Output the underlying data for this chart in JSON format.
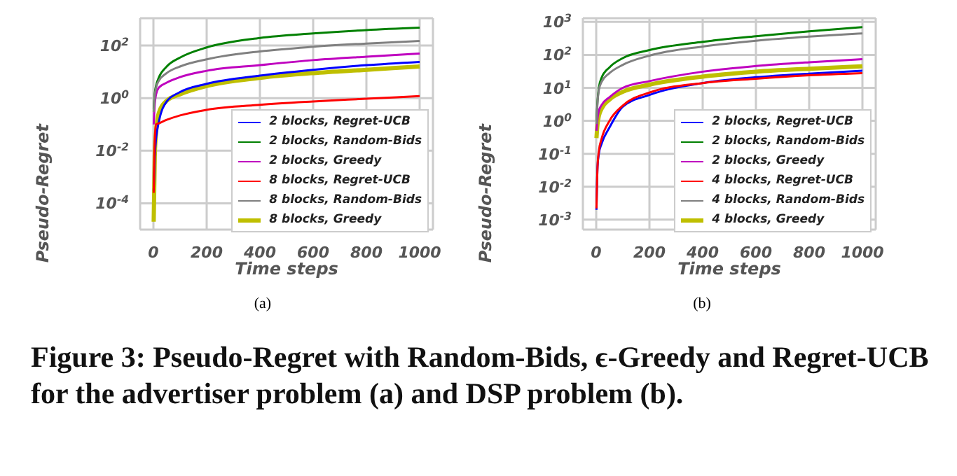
{
  "chart_data": [
    {
      "type": "line",
      "xlabel": "Time steps",
      "ylabel": "Pseudo-Regret",
      "log": "y",
      "grid": true,
      "legend": "bottom right",
      "marker": "none",
      "line_style": "solid",
      "annotations": [
        "(a)",
        "Figure 3: Pseudo-Regret with Random-Bids, ϵ-Greedy and Regret-UCB for the advertiser problem (a) and DSP problem (b)."
      ],
      "xlim": [
        -50,
        1050
      ],
      "xticks": [
        0,
        200,
        400,
        600,
        800,
        1000
      ],
      "ylim": [
        1e-05,
        1100
      ],
      "yticks": [
        {
          "value": 0.0001,
          "label": "10$^{-4}$"
        },
        {
          "value": 0.01,
          "label": "10$^{-2}$"
        },
        {
          "value": 1,
          "label": "10$^{0}$"
        },
        {
          "value": 100,
          "label": "10$^{2}$"
        }
      ],
      "x": [
        1,
        5,
        10,
        20,
        50,
        100,
        200,
        400,
        600,
        800,
        1000
      ],
      "series": [
        {
          "name": "2 blocks, Regret-UCB",
          "color": "#0000ff",
          "values": [
            0.0003,
            0.006,
            0.03,
            0.12,
            0.75,
            1.7,
            3.5,
            7.2,
            12,
            18,
            24
          ]
        },
        {
          "name": "2 blocks, Random-Bids",
          "color": "#008000",
          "values": [
            0.4,
            1.5,
            3,
            6,
            16,
            35,
            85,
            195,
            290,
            390,
            480
          ]
        },
        {
          "name": "2 blocks, Greedy",
          "color": "#bf00bf",
          "values": [
            0.1,
            0.6,
            1.4,
            2.5,
            3.9,
            6.3,
            11,
            18,
            28,
            38,
            50
          ]
        },
        {
          "name": "8 blocks, Regret-UCB",
          "color": "#ff0000",
          "values": [
            0.00025,
            0.025,
            0.1,
            0.11,
            0.15,
            0.22,
            0.36,
            0.56,
            0.75,
            0.95,
            1.2
          ]
        },
        {
          "name": "8 blocks, Random-Bids",
          "color": "#808080",
          "values": [
            0.3,
            1.2,
            2.5,
            4.5,
            9,
            16,
            30,
            60,
            90,
            120,
            150
          ]
        },
        {
          "name": "8 blocks, Greedy",
          "color": "#bfbf00",
          "values": [
            2e-05,
            0.006,
            0.05,
            0.27,
            0.8,
            1.4,
            2.9,
            5.9,
            9,
            12,
            16
          ]
        }
      ]
    },
    {
      "type": "line",
      "xlabel": "Time steps",
      "ylabel": "Pseudo-Regret",
      "log": "y",
      "grid": true,
      "legend": "bottom right",
      "marker": "none",
      "line_style": "solid",
      "annotations": [
        "(b)"
      ],
      "xlim": [
        -50,
        1050
      ],
      "xticks": [
        0,
        200,
        400,
        600,
        800,
        1000
      ],
      "ylim": [
        0.0005,
        1300
      ],
      "yticks": [
        {
          "value": 0.001,
          "label": "10$^{-3}$"
        },
        {
          "value": 0.01,
          "label": "10$^{-2}$"
        },
        {
          "value": 0.1,
          "label": "10$^{-1}$"
        },
        {
          "value": 1,
          "label": "10$^{0}$"
        },
        {
          "value": 10,
          "label": "10$^{1}$"
        },
        {
          "value": 100,
          "label": "10$^{2}$"
        },
        {
          "value": 1000,
          "label": "10$^{3}$"
        }
      ],
      "x": [
        1,
        5,
        10,
        20,
        50,
        100,
        200,
        400,
        600,
        800,
        1000
      ],
      "series": [
        {
          "name": "2 blocks, Regret-UCB",
          "color": "#0000ff",
          "values": [
            0.002,
            0.04,
            0.1,
            0.2,
            0.63,
            2.7,
            6.1,
            14,
            21,
            27,
            33
          ]
        },
        {
          "name": "2 blocks, Random-Bids",
          "color": "#008000",
          "values": [
            1,
            4,
            10,
            20,
            42,
            80,
            140,
            250,
            370,
            520,
            700
          ]
        },
        {
          "name": "2 blocks, Greedy",
          "color": "#bf00bf",
          "values": [
            0.5,
            1.2,
            2,
            3,
            5.2,
            10,
            16,
            31,
            46,
            60,
            74
          ]
        },
        {
          "name": "4 blocks, Regret-UCB",
          "color": "#ff0000",
          "values": [
            0.0022,
            0.04,
            0.12,
            0.28,
            1,
            2.9,
            7.2,
            14,
            19,
            24,
            28
          ]
        },
        {
          "name": "4 blocks, Random-Bids",
          "color": "#808080",
          "values": [
            0.8,
            3.5,
            8.5,
            15,
            28,
            50,
            95,
            180,
            270,
            360,
            450
          ]
        },
        {
          "name": "4 blocks, Greedy",
          "color": "#bfbf00",
          "values": [
            0.3,
            0.8,
            1.4,
            2.3,
            4.4,
            7.6,
            12.5,
            22,
            31,
            38,
            45
          ]
        }
      ]
    }
  ]
}
